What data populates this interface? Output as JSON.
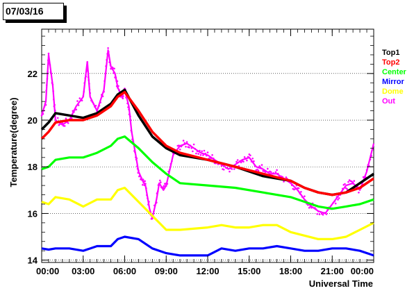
{
  "title": "07/03/16",
  "chart_data": {
    "type": "scatter",
    "title": "07/03/16",
    "xlabel": "Universal Time",
    "ylabel": "Temperature(degree)",
    "xlim": [
      0,
      24
    ],
    "ylim": [
      13.9,
      23.9
    ],
    "x_ticks": [
      0,
      3,
      6,
      9,
      12,
      15,
      18,
      21,
      24
    ],
    "x_tick_labels": [
      "00:00",
      "03:00",
      "06:00",
      "09:00",
      "12:00",
      "15:00",
      "18:00",
      "21:00",
      "00:00"
    ],
    "y_ticks": [
      14,
      16,
      18,
      20,
      22
    ],
    "y_tick_labels": [
      "14",
      "16",
      "18",
      "20",
      "22"
    ],
    "grid": "y-dotted",
    "legend_position": "right",
    "series": [
      {
        "name": "Top1",
        "color": "#000000",
        "x": [
          0,
          0.5,
          1,
          2,
          3,
          4,
          5,
          5.5,
          6,
          7,
          8,
          9,
          10,
          12,
          14,
          16,
          18,
          19,
          20,
          21,
          22,
          23,
          24
        ],
        "y": [
          19.6,
          19.9,
          20.3,
          20.2,
          20.1,
          20.3,
          20.7,
          21.1,
          21.3,
          20.2,
          19.3,
          18.8,
          18.5,
          18.3,
          18.0,
          17.6,
          17.4,
          17.1,
          16.9,
          16.8,
          16.9,
          17.3,
          17.7
        ]
      },
      {
        "name": "Top2",
        "color": "#ff0000",
        "x": [
          0,
          0.5,
          1,
          2,
          3,
          4,
          5,
          5.5,
          6,
          7,
          8,
          9,
          10,
          12,
          14,
          16,
          18,
          19,
          20,
          21,
          22,
          23,
          24
        ],
        "y": [
          19.2,
          19.5,
          19.9,
          20.0,
          20.0,
          20.2,
          20.6,
          21.0,
          21.2,
          20.4,
          19.5,
          18.9,
          18.6,
          18.3,
          18.0,
          17.7,
          17.4,
          17.1,
          16.9,
          16.8,
          16.9,
          17.1,
          17.5
        ]
      },
      {
        "name": "Center",
        "color": "#00ff00",
        "x": [
          0,
          0.5,
          1,
          2,
          3,
          4,
          5,
          5.5,
          6,
          7,
          8,
          9,
          10,
          12,
          14,
          16,
          18,
          19,
          20,
          21,
          22,
          23,
          24
        ],
        "y": [
          17.9,
          18.0,
          18.3,
          18.4,
          18.4,
          18.6,
          18.9,
          19.2,
          19.3,
          18.8,
          18.2,
          17.7,
          17.3,
          17.2,
          17.1,
          16.9,
          16.7,
          16.5,
          16.3,
          16.2,
          16.3,
          16.4,
          16.6
        ]
      },
      {
        "name": "Mirror",
        "color": "#0000ff",
        "x": [
          0,
          0.5,
          1,
          2,
          3,
          4,
          5,
          5.5,
          6,
          7,
          8,
          9,
          10,
          12,
          13,
          14,
          15,
          16,
          17,
          18,
          19,
          20,
          21,
          22,
          23,
          24
        ],
        "y": [
          14.5,
          14.45,
          14.5,
          14.5,
          14.4,
          14.6,
          14.6,
          14.9,
          15.0,
          14.9,
          14.5,
          14.3,
          14.2,
          14.2,
          14.5,
          14.4,
          14.5,
          14.5,
          14.6,
          14.5,
          14.4,
          14.4,
          14.5,
          14.5,
          14.4,
          14.2
        ]
      },
      {
        "name": "Dome",
        "color": "#ffff00",
        "x": [
          0,
          0.5,
          1,
          2,
          3,
          4,
          5,
          5.5,
          6,
          7,
          8,
          8.5,
          9,
          10,
          12,
          13,
          14,
          15,
          16,
          17,
          18,
          20,
          21,
          22,
          23,
          24
        ],
        "y": [
          16.5,
          16.4,
          16.7,
          16.6,
          16.3,
          16.6,
          16.6,
          17.0,
          17.1,
          16.5,
          15.9,
          15.6,
          15.3,
          15.3,
          15.4,
          15.5,
          15.4,
          15.4,
          15.5,
          15.5,
          15.2,
          14.9,
          14.9,
          15.0,
          15.3,
          15.6
        ]
      },
      {
        "name": "Out",
        "color": "#ff00ff",
        "x": [
          0,
          0.3,
          0.5,
          0.8,
          1,
          1.5,
          2,
          2.5,
          3,
          3.3,
          3.5,
          4,
          4.5,
          4.8,
          5,
          5.3,
          5.5,
          5.8,
          6,
          6.3,
          6.5,
          6.8,
          7,
          7.3,
          7.5,
          7.8,
          8,
          8.3,
          8.5,
          8.8,
          9,
          9.5,
          10,
          10.5,
          11,
          11.5,
          12,
          12.5,
          13,
          13.5,
          14,
          14.5,
          15,
          15.5,
          16,
          16.5,
          17,
          17.5,
          18,
          18.5,
          19,
          19.5,
          20,
          20.5,
          21,
          21.5,
          22,
          22.5,
          23,
          23.5,
          24
        ],
        "y": [
          20.2,
          20.8,
          22.8,
          21.5,
          20.0,
          19.8,
          20.0,
          20.6,
          21.0,
          22.5,
          21.0,
          20.4,
          21.3,
          23.0,
          22.3,
          22.0,
          21.4,
          21.0,
          21.3,
          20.6,
          19.5,
          18.5,
          17.8,
          17.4,
          17.2,
          16.2,
          15.8,
          16.6,
          17.3,
          17.0,
          17.2,
          18.5,
          18.9,
          19.0,
          18.8,
          18.6,
          18.5,
          18.3,
          18.1,
          17.9,
          18.1,
          18.3,
          18.4,
          18.0,
          17.9,
          17.7,
          17.7,
          17.5,
          17.3,
          17.0,
          16.6,
          16.3,
          16.1,
          16.0,
          16.4,
          16.8,
          17.2,
          17.3,
          17.0,
          17.8,
          19.0
        ]
      }
    ]
  }
}
